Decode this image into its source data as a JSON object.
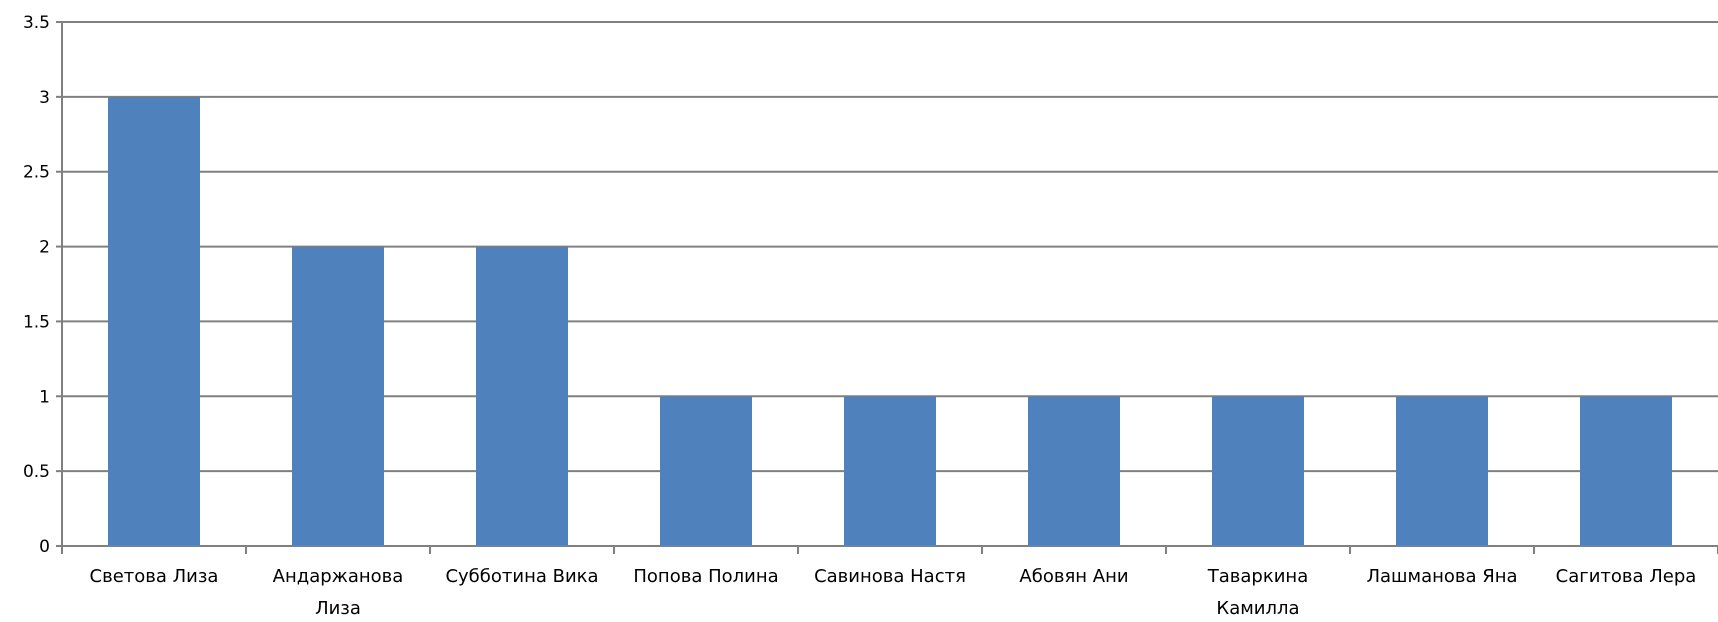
{
  "chart_data": {
    "type": "bar",
    "title": "",
    "xlabel": "",
    "ylabel": "",
    "categories": [
      "Светова Лиза",
      "Андаржанова Лиза",
      "Субботина Вика",
      "Попова Полина",
      "Савинова Настя",
      "Абовян Ани",
      "Таваркина Камилла",
      "Лашманова Яна",
      "Сагитова Лера"
    ],
    "category_lines": [
      [
        "Светова Лиза"
      ],
      [
        "Андаржанова",
        "Лиза"
      ],
      [
        "Субботина Вика"
      ],
      [
        "Попова Полина"
      ],
      [
        "Савинова Настя"
      ],
      [
        "Абовян Ани"
      ],
      [
        "Таваркина",
        "Камилла"
      ],
      [
        "Лашманова Яна"
      ],
      [
        "Сагитова Лера"
      ]
    ],
    "values": [
      3,
      2,
      2,
      1,
      1,
      1,
      1,
      1,
      1
    ],
    "ylim": [
      0,
      3.5
    ],
    "yticks": [
      0,
      0.5,
      1,
      1.5,
      2,
      2.5,
      3,
      3.5
    ],
    "ytick_labels": [
      "0",
      "0.5",
      "1",
      "1.5",
      "2",
      "2.5",
      "3",
      "3.5"
    ],
    "grid": true,
    "legend": "none",
    "colors": {
      "bar": "#4f81bd",
      "grid": "#808080",
      "axis": "#808080"
    }
  }
}
